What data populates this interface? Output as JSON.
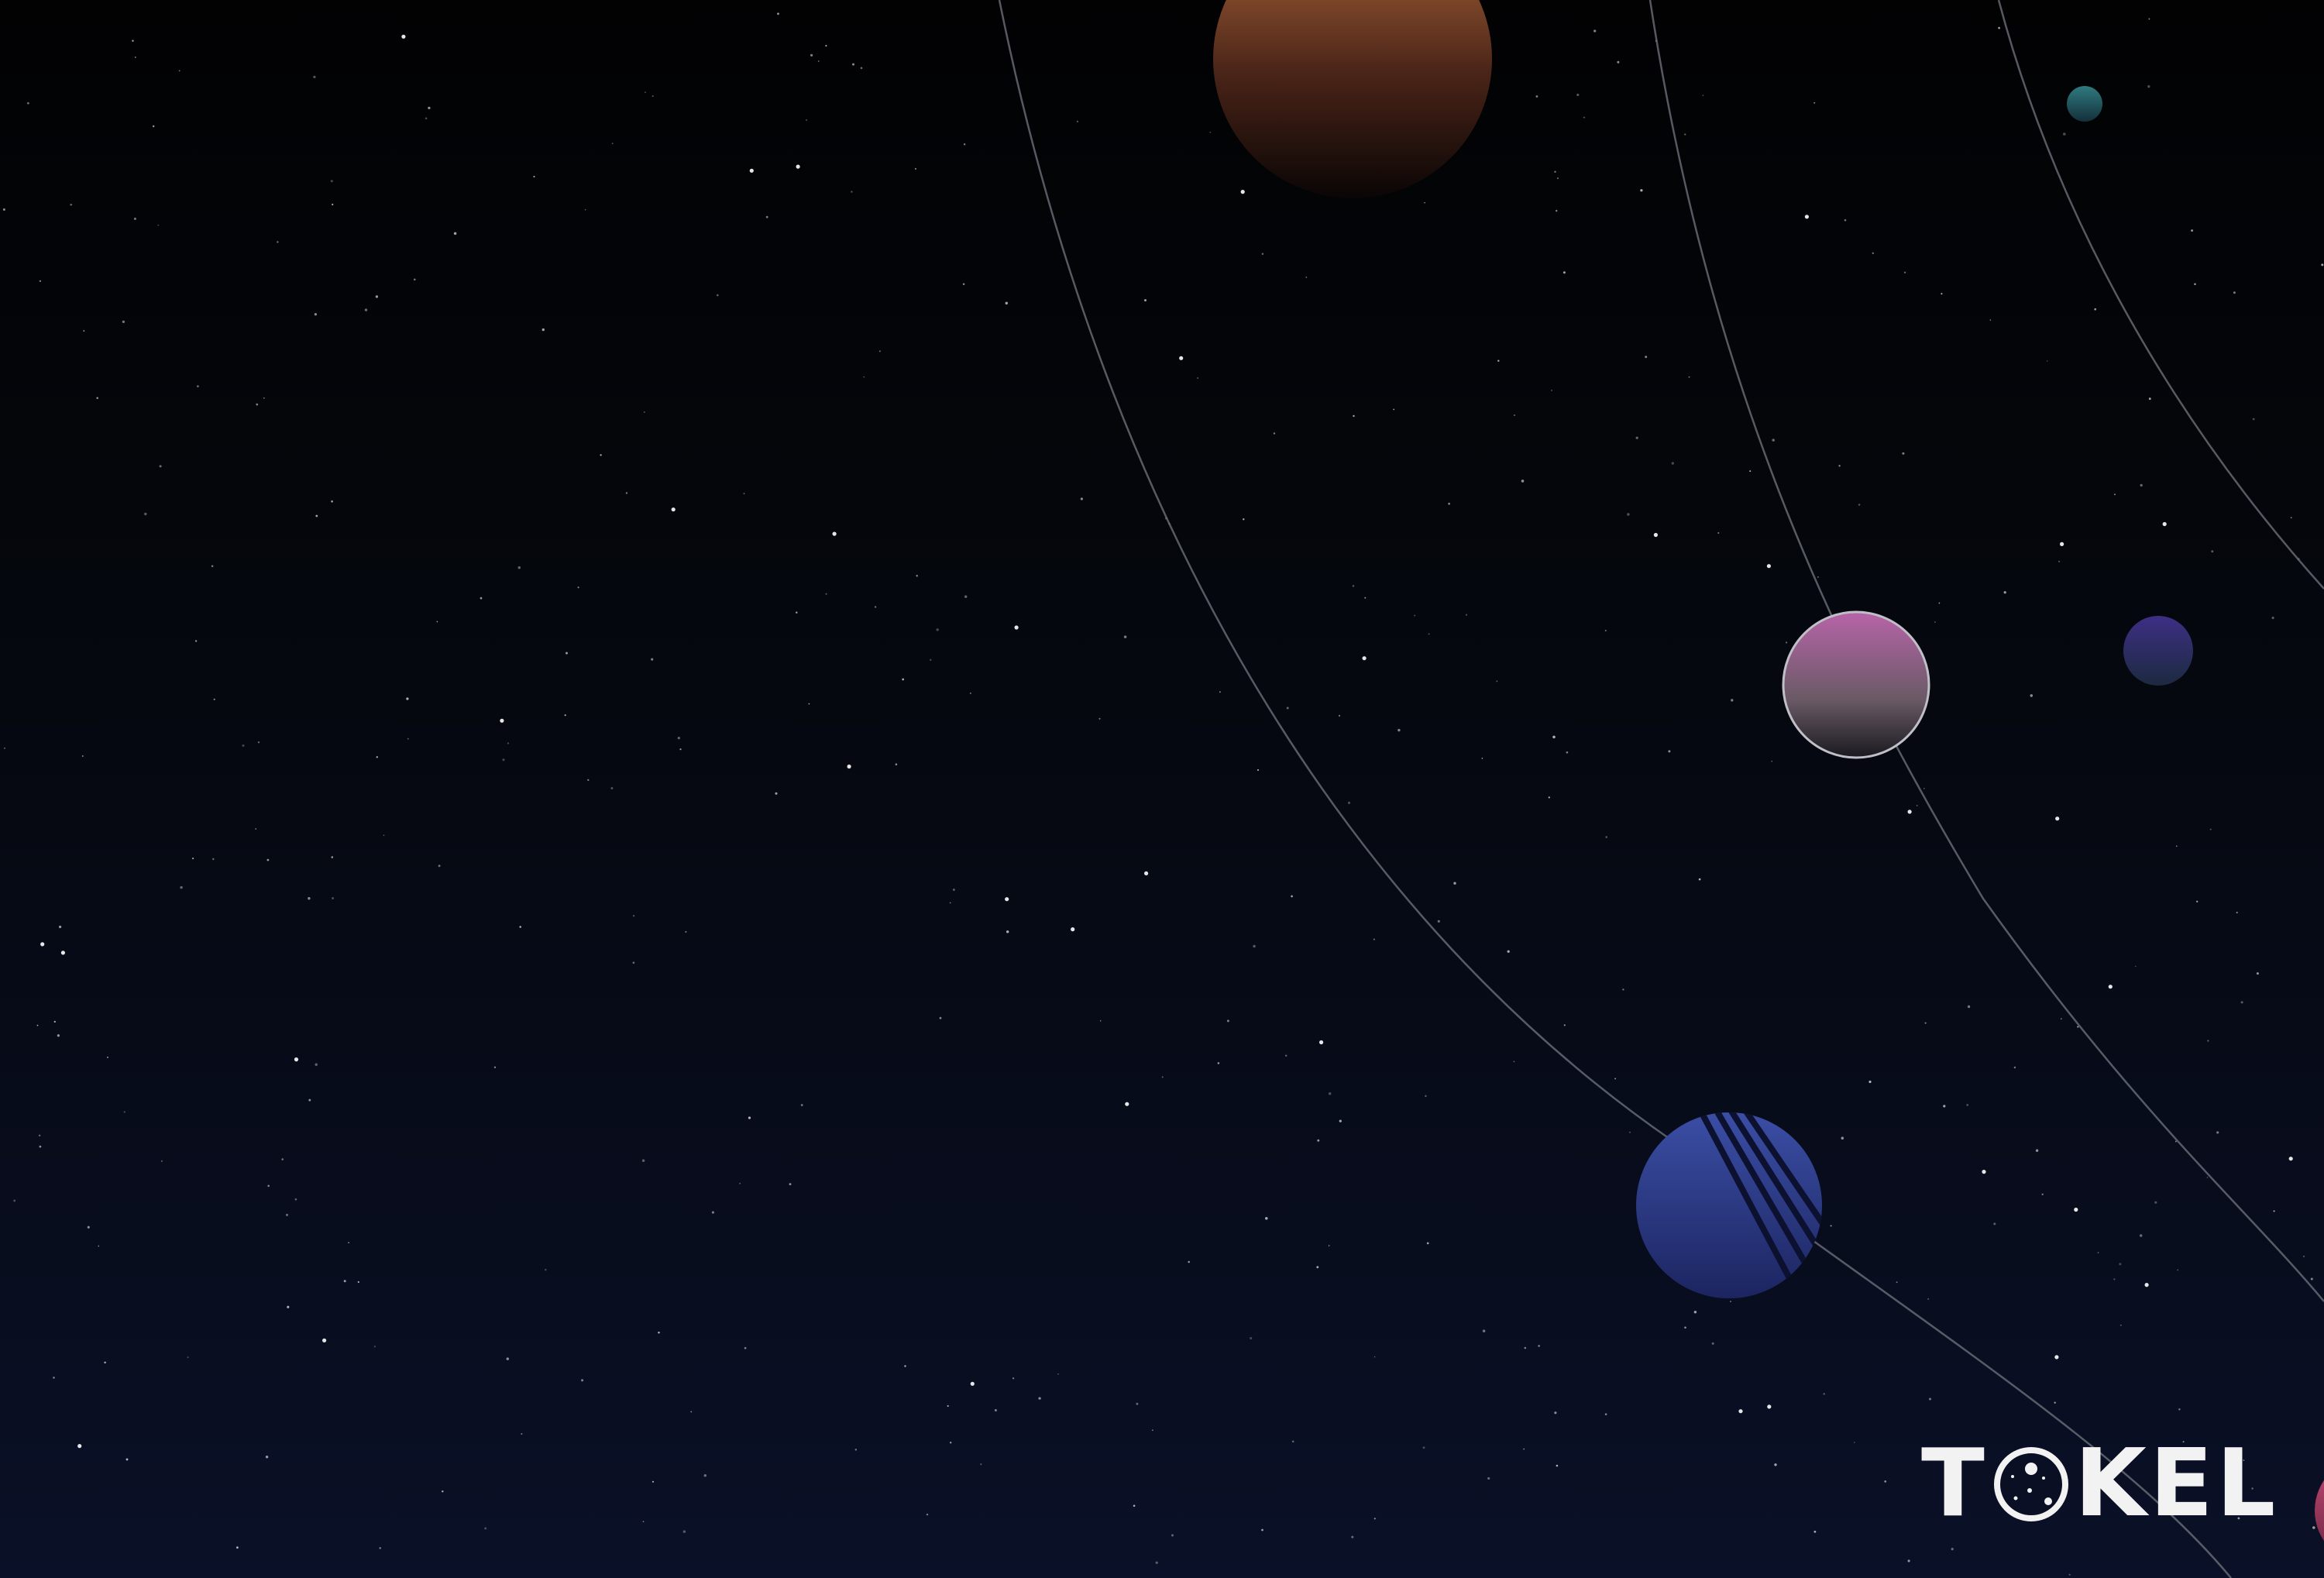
{
  "brand": {
    "name": "TOKEL",
    "wordmark_left": "T",
    "wordmark_right": "KEL",
    "logo_icon": "planet-globe-icon"
  },
  "colors": {
    "background_top": "#020203",
    "background_bottom": "#0a1027",
    "orbit_line": "#6b6f78",
    "planet_orange": "#b06a3a",
    "planet_pink": "#b764a8",
    "planet_blue": "#3a4aa0",
    "planet_teal": "#2a6a70",
    "planet_violet": "#3a3080",
    "planet_rose": "#b34a70",
    "logo_text": "#f2f2f2"
  }
}
